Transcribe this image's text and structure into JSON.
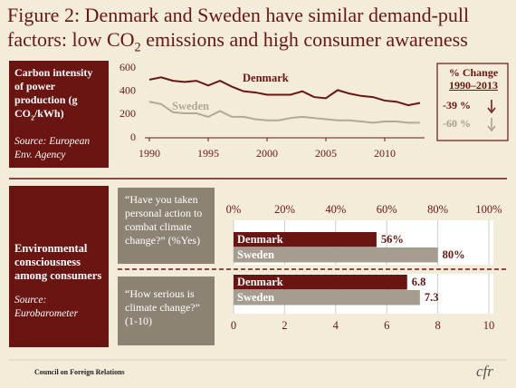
{
  "title": [
    "Figure 2:  Denmark and Sweden have similar demand-pull",
    "factors: low CO",
    "2",
    " emissions and high consumer awareness"
  ],
  "emissions_box": {
    "label": [
      "Carbon intensity of power production (g CO",
      "2",
      "/kWh)"
    ],
    "source": "Source: European Env. Agency"
  },
  "change": {
    "title": "% Change",
    "period": "1990–2013",
    "values": [
      -39,
      -60
    ],
    "value_labels": [
      "-39 %",
      "-60 %"
    ],
    "colors": [
      "#6b1512",
      "#a59d90"
    ]
  },
  "consumers_box": {
    "label": "Environmental consciousness among consumers",
    "source": "Source: Eurobarometer"
  },
  "footer": {
    "organization": "Council on Foreign Relations",
    "logo": "cfr"
  },
  "chart_data": [
    {
      "type": "line",
      "x": [
        1990,
        1991,
        1992,
        1993,
        1994,
        1995,
        1996,
        1997,
        1998,
        1999,
        2000,
        2001,
        2002,
        2003,
        2004,
        2005,
        2006,
        2007,
        2008,
        2009,
        2010,
        2011,
        2012,
        2013
      ],
      "series": [
        {
          "name": "Denmark",
          "color": "#6b1512",
          "values": [
            500,
            520,
            490,
            480,
            490,
            450,
            490,
            440,
            400,
            390,
            370,
            370,
            370,
            400,
            350,
            340,
            410,
            380,
            360,
            350,
            320,
            310,
            280,
            300
          ]
        },
        {
          "name": "Sweden",
          "color": "#b0a898",
          "values": [
            310,
            290,
            220,
            210,
            210,
            180,
            230,
            180,
            180,
            160,
            150,
            150,
            170,
            180,
            170,
            160,
            150,
            150,
            140,
            130,
            140,
            140,
            130,
            130
          ]
        }
      ],
      "xlim": [
        1990,
        2013
      ],
      "xticks": [
        1990,
        1995,
        2000,
        2005,
        2010
      ],
      "ylim": [
        0,
        600
      ],
      "yticks": [
        0,
        200,
        400,
        600
      ],
      "grid": false
    },
    {
      "type": "bar",
      "orientation": "horizontal",
      "title": "“Have you taken personal action to combat climate change?” (%Yes)",
      "categories": [
        "Denmark",
        "Sweden"
      ],
      "values": [
        56,
        80
      ],
      "value_labels": [
        "56%",
        "80%"
      ],
      "colors": [
        "#6b1512",
        "#a59d90"
      ],
      "xlim": [
        0,
        100
      ],
      "xticks": [
        {
          "value": 0,
          "label": "0%"
        },
        {
          "value": 20,
          "label": "20%"
        },
        {
          "value": 40,
          "label": "40%"
        },
        {
          "value": 60,
          "label": "60%"
        },
        {
          "value": 80,
          "label": "80%"
        },
        {
          "value": 100,
          "label": "100%"
        }
      ],
      "xaxis_position": "top",
      "grid": true
    },
    {
      "type": "bar",
      "orientation": "horizontal",
      "title": "“How serious is climate change?” (1-10)",
      "categories": [
        "Denmark",
        "Sweden"
      ],
      "values": [
        6.8,
        7.3
      ],
      "colors": [
        "#6b1512",
        "#a59d90"
      ],
      "xlim": [
        0,
        10
      ],
      "xticks": [
        0,
        2,
        4,
        6,
        8,
        10
      ],
      "xaxis_position": "bottom",
      "grid": true
    }
  ]
}
